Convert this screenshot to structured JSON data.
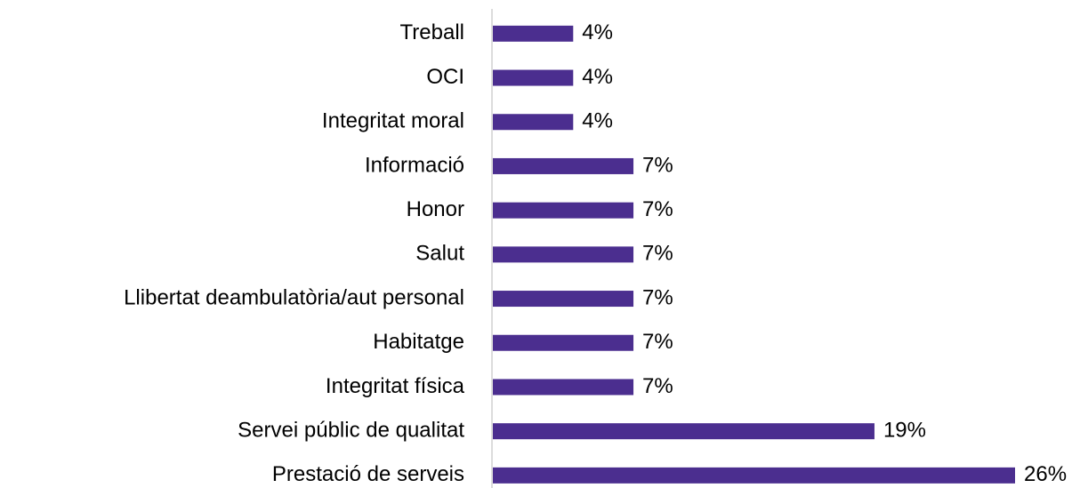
{
  "chart_data": {
    "type": "bar",
    "orientation": "horizontal",
    "categories": [
      "Treball",
      "OCI",
      "Integritat moral",
      "Informació",
      "Honor",
      "Salut",
      "Llibertat deambulatòria/aut personal",
      "Habitatge",
      "Integritat física",
      "Servei públic de qualitat",
      "Prestació de serveis"
    ],
    "values": [
      4,
      4,
      4,
      7,
      7,
      7,
      7,
      7,
      7,
      19,
      26
    ],
    "value_labels": [
      "4%",
      "4%",
      "4%",
      "7%",
      "7%",
      "7%",
      "7%",
      "7%",
      "7%",
      "19%",
      "26%"
    ],
    "color": "#4b2e8f",
    "xlim": [
      0,
      26
    ]
  }
}
